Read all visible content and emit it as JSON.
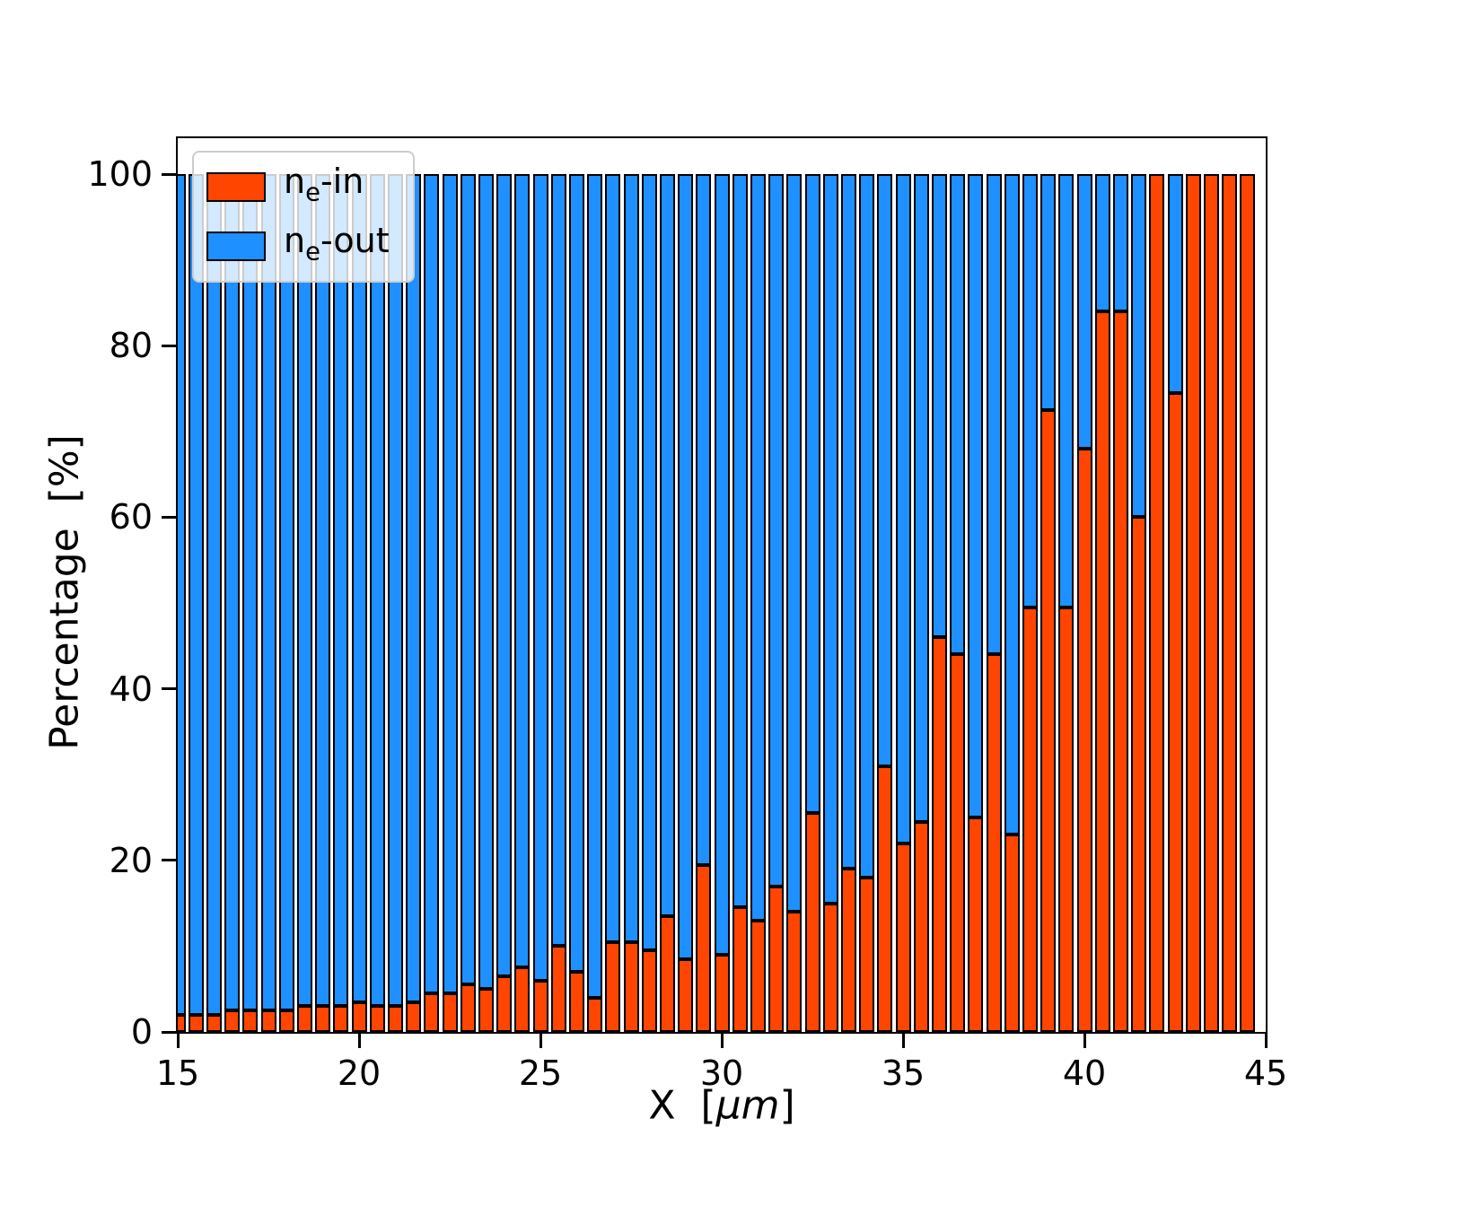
{
  "figure": {
    "background": "#ffffff",
    "ylabel": "Percentage  [%]",
    "xlabel": {
      "prefix": "X  [",
      "italic": "μm",
      "suffix": "]"
    },
    "xticks": [
      15,
      20,
      25,
      30,
      35,
      40,
      45
    ],
    "yticks": [
      0,
      20,
      40,
      60,
      80,
      100
    ]
  },
  "legend": {
    "items": [
      {
        "base": "n",
        "sub": "e",
        "rest": "-in"
      },
      {
        "base": "n",
        "sub": "e",
        "rest": "-out"
      }
    ]
  },
  "chart_data": {
    "type": "bar",
    "stacked": true,
    "title": "",
    "xlabel": "X [μm]",
    "ylabel": "Percentage [%]",
    "xlim": [
      15,
      45
    ],
    "ylim": [
      0,
      100
    ],
    "bar_width": 0.42,
    "edgecolor": "#000000",
    "legend_position": "upper left",
    "grid": false,
    "x": [
      15.0,
      15.5,
      16.0,
      16.5,
      17.0,
      17.5,
      18.0,
      18.5,
      19.0,
      19.5,
      20.0,
      20.5,
      21.0,
      21.5,
      22.0,
      22.5,
      23.0,
      23.5,
      24.0,
      24.5,
      25.0,
      25.5,
      26.0,
      26.5,
      27.0,
      27.5,
      28.0,
      28.5,
      29.0,
      29.5,
      30.0,
      30.5,
      31.0,
      31.5,
      32.0,
      32.5,
      33.0,
      33.5,
      34.0,
      34.5,
      35.0,
      35.5,
      36.0,
      36.5,
      37.0,
      37.5,
      38.0,
      38.5,
      39.0,
      39.5,
      40.0,
      40.5,
      41.0,
      41.5,
      42.0,
      42.5,
      43.0,
      43.5,
      44.0,
      44.5
    ],
    "series": [
      {
        "name": "ne-in",
        "color": "#ff4500",
        "values": [
          2,
          2,
          2,
          2.5,
          2.5,
          2.5,
          2.5,
          3,
          3,
          3,
          3.5,
          3,
          3,
          3.5,
          4.5,
          4.5,
          5.5,
          5,
          6.5,
          7.5,
          6,
          10,
          7,
          4,
          10.5,
          10.5,
          9.5,
          13.5,
          8.5,
          19.5,
          9,
          14.5,
          13,
          17,
          14,
          25.5,
          15,
          19,
          18,
          31,
          22,
          24.5,
          46,
          44,
          25,
          44,
          23,
          49.5,
          72.5,
          49.5,
          68,
          84,
          84,
          60,
          100,
          74.5,
          100,
          100,
          100,
          100
        ]
      },
      {
        "name": "ne-out",
        "color": "#1e90ff",
        "values": [
          98,
          98,
          98,
          97.5,
          97.5,
          97.5,
          97.5,
          97,
          97,
          97,
          96.5,
          97,
          97,
          96.5,
          95.5,
          95.5,
          94.5,
          95,
          93.5,
          92.5,
          94,
          90,
          93,
          96,
          89.5,
          89.5,
          90.5,
          86.5,
          91.5,
          80.5,
          91,
          85.5,
          87,
          83,
          86,
          74.5,
          85,
          81,
          82,
          69,
          78,
          75.5,
          54,
          56,
          75,
          56,
          77,
          50.5,
          27.5,
          50.5,
          32,
          16,
          16,
          40,
          0,
          25.5,
          0,
          0,
          0,
          0
        ]
      }
    ]
  }
}
